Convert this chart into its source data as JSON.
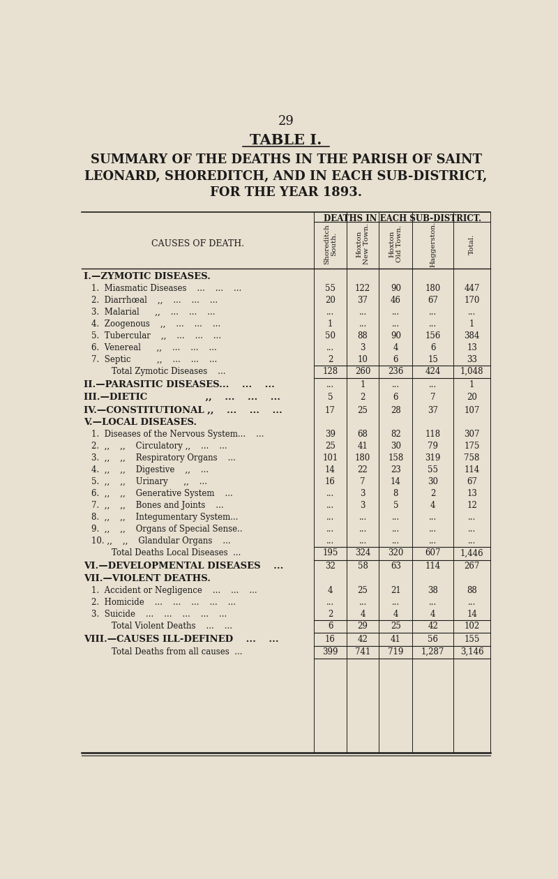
{
  "page_number": "29",
  "table_title": "TABLE I.",
  "subtitle_lines": [
    "SUMMARY OF THE DEATHS IN THE PARISH OF SAINT",
    "LEONARD, SHOREDITCH, AND IN EACH SUB-DISTRICT,",
    "FOR THE YEAR 1893."
  ],
  "col_header_main": "DEATHS IN EACH SUB-DISTRICT.",
  "col_headers": [
    "Shoreditch\nSouth.",
    "Hoxton\nNew Town.",
    "Hoxton\nOld Town.",
    "Haggerston.",
    "Total."
  ],
  "causes_label": "CAUSES OF DEATH.",
  "bg_color": "#e8e0d0",
  "text_color": "#1a1a1a",
  "rows": [
    {
      "label": "I.—ZYMOTIC DISEASES.",
      "indent": 0,
      "style": "section",
      "vals": [
        "",
        "",
        "",
        "",
        ""
      ]
    },
    {
      "label": "1.  Miasmatic Diseases    ...    ...    ...",
      "indent": 1,
      "style": "data",
      "vals": [
        "55",
        "122",
        "90",
        "180",
        "447"
      ]
    },
    {
      "label": "2.  Diarrhœal    ,,    ...    ...    ...",
      "indent": 1,
      "style": "data",
      "vals": [
        "20",
        "37",
        "46",
        "67",
        "170"
      ]
    },
    {
      "label": "3.  Malarial      ,,    ...    ...    ...",
      "indent": 1,
      "style": "data",
      "vals": [
        "...",
        "...",
        "...",
        "...",
        "..."
      ]
    },
    {
      "label": "4.  Zoogenous    ,,    ...    ...    ...",
      "indent": 1,
      "style": "data",
      "vals": [
        "1",
        "...",
        "...",
        "...",
        "1"
      ]
    },
    {
      "label": "5.  Tubercular    ,,    ...    ...    ...",
      "indent": 1,
      "style": "data",
      "vals": [
        "50",
        "88",
        "90",
        "156",
        "384"
      ]
    },
    {
      "label": "6.  Venereal      ,,    ...    ...    ...",
      "indent": 1,
      "style": "data",
      "vals": [
        "...",
        "3",
        "4",
        "6",
        "13"
      ]
    },
    {
      "label": "7.  Septic          ,,    ...    ...    ...",
      "indent": 1,
      "style": "data",
      "vals": [
        "2",
        "10",
        "6",
        "15",
        "33"
      ]
    },
    {
      "label": "Total Zymotic Diseases    ...",
      "indent": 2,
      "style": "total",
      "vals": [
        "128",
        "260",
        "236",
        "424",
        "1,048"
      ]
    },
    {
      "label": "II.—PARASITIC DISEASES...    ...    ...",
      "indent": 0,
      "style": "section_data",
      "vals": [
        "...",
        "1",
        "...",
        "...",
        "1"
      ]
    },
    {
      "label": "III.—DIETIC                  ,,    ...    ...    ...",
      "indent": 0,
      "style": "section_data",
      "vals": [
        "5",
        "2",
        "6",
        "7",
        "20"
      ]
    },
    {
      "label": "IV.—CONSTITUTIONAL ,,    ...    ...    ...",
      "indent": 0,
      "style": "section_data",
      "vals": [
        "17",
        "25",
        "28",
        "37",
        "107"
      ]
    },
    {
      "label": "V.—LOCAL DISEASES.",
      "indent": 0,
      "style": "section",
      "vals": [
        "",
        "",
        "",
        "",
        ""
      ]
    },
    {
      "label": "1.  Diseases of the Nervous System...    ...",
      "indent": 1,
      "style": "data",
      "vals": [
        "39",
        "68",
        "82",
        "118",
        "307"
      ]
    },
    {
      "label": "2.  ,,    ,,    Circulatory ,,    ...    ...",
      "indent": 1,
      "style": "data",
      "vals": [
        "25",
        "41",
        "30",
        "79",
        "175"
      ]
    },
    {
      "label": "3.  ,,    ,,    Respiratory Organs    ...",
      "indent": 1,
      "style": "data",
      "vals": [
        "101",
        "180",
        "158",
        "319",
        "758"
      ]
    },
    {
      "label": "4.  ,,    ,,    Digestive    ,,    ...",
      "indent": 1,
      "style": "data",
      "vals": [
        "14",
        "22",
        "23",
        "55",
        "114"
      ]
    },
    {
      "label": "5.  ,,    ,,    Urinary      ,,    ...",
      "indent": 1,
      "style": "data",
      "vals": [
        "16",
        "7",
        "14",
        "30",
        "67"
      ]
    },
    {
      "label": "6.  ,,    ,,    Generative System    ...",
      "indent": 1,
      "style": "data",
      "vals": [
        "...",
        "3",
        "8",
        "2",
        "13"
      ]
    },
    {
      "label": "7.  ,,    ,,    Bones and Joints    ...",
      "indent": 1,
      "style": "data",
      "vals": [
        "...",
        "3",
        "5",
        "4",
        "12"
      ]
    },
    {
      "label": "8.  ,,    ,,    Integumentary System...",
      "indent": 1,
      "style": "data",
      "vals": [
        "...",
        "...",
        "...",
        "...",
        "..."
      ]
    },
    {
      "label": "9.  ,,    ,,    Organs of Special Sense..",
      "indent": 1,
      "style": "data",
      "vals": [
        "...",
        "...",
        "...",
        "...",
        "..."
      ]
    },
    {
      "label": "10. ,,    ,,    Glandular Organs    ...",
      "indent": 1,
      "style": "data",
      "vals": [
        "...",
        "...",
        "...",
        "...",
        "..."
      ]
    },
    {
      "label": "Total Deaths Local Diseases  ...",
      "indent": 2,
      "style": "total",
      "vals": [
        "195",
        "324",
        "320",
        "607",
        "1,446"
      ]
    },
    {
      "label": "VI.—DEVELOPMENTAL DISEASES    ...",
      "indent": 0,
      "style": "section_data",
      "vals": [
        "32",
        "58",
        "63",
        "114",
        "267"
      ]
    },
    {
      "label": "VII.—VIOLENT DEATHS.",
      "indent": 0,
      "style": "section",
      "vals": [
        "",
        "",
        "",
        "",
        ""
      ]
    },
    {
      "label": "1.  Accident or Negligence    ...    ...    ...",
      "indent": 1,
      "style": "data",
      "vals": [
        "4",
        "25",
        "21",
        "38",
        "88"
      ]
    },
    {
      "label": "2.  Homicide    ...    ...    ...    ...    ...",
      "indent": 1,
      "style": "data",
      "vals": [
        "...",
        "...",
        "...",
        "...",
        "..."
      ]
    },
    {
      "label": "3.  Suicide    ...    ...    ...    ...    ...",
      "indent": 1,
      "style": "data",
      "vals": [
        "2",
        "4",
        "4",
        "4",
        "14"
      ]
    },
    {
      "label": "Total Violent Deaths    ...    ...",
      "indent": 2,
      "style": "total",
      "vals": [
        "6",
        "29",
        "25",
        "42",
        "102"
      ]
    },
    {
      "label": "VIII.—CAUSES ILL-DEFINED    ...    ...",
      "indent": 0,
      "style": "section_data",
      "vals": [
        "16",
        "42",
        "41",
        "56",
        "155"
      ]
    },
    {
      "label": "Total Deaths from all causes  ...",
      "indent": 2,
      "style": "grand_total",
      "vals": [
        "399",
        "741",
        "719",
        "1,287",
        "3,146"
      ]
    }
  ]
}
